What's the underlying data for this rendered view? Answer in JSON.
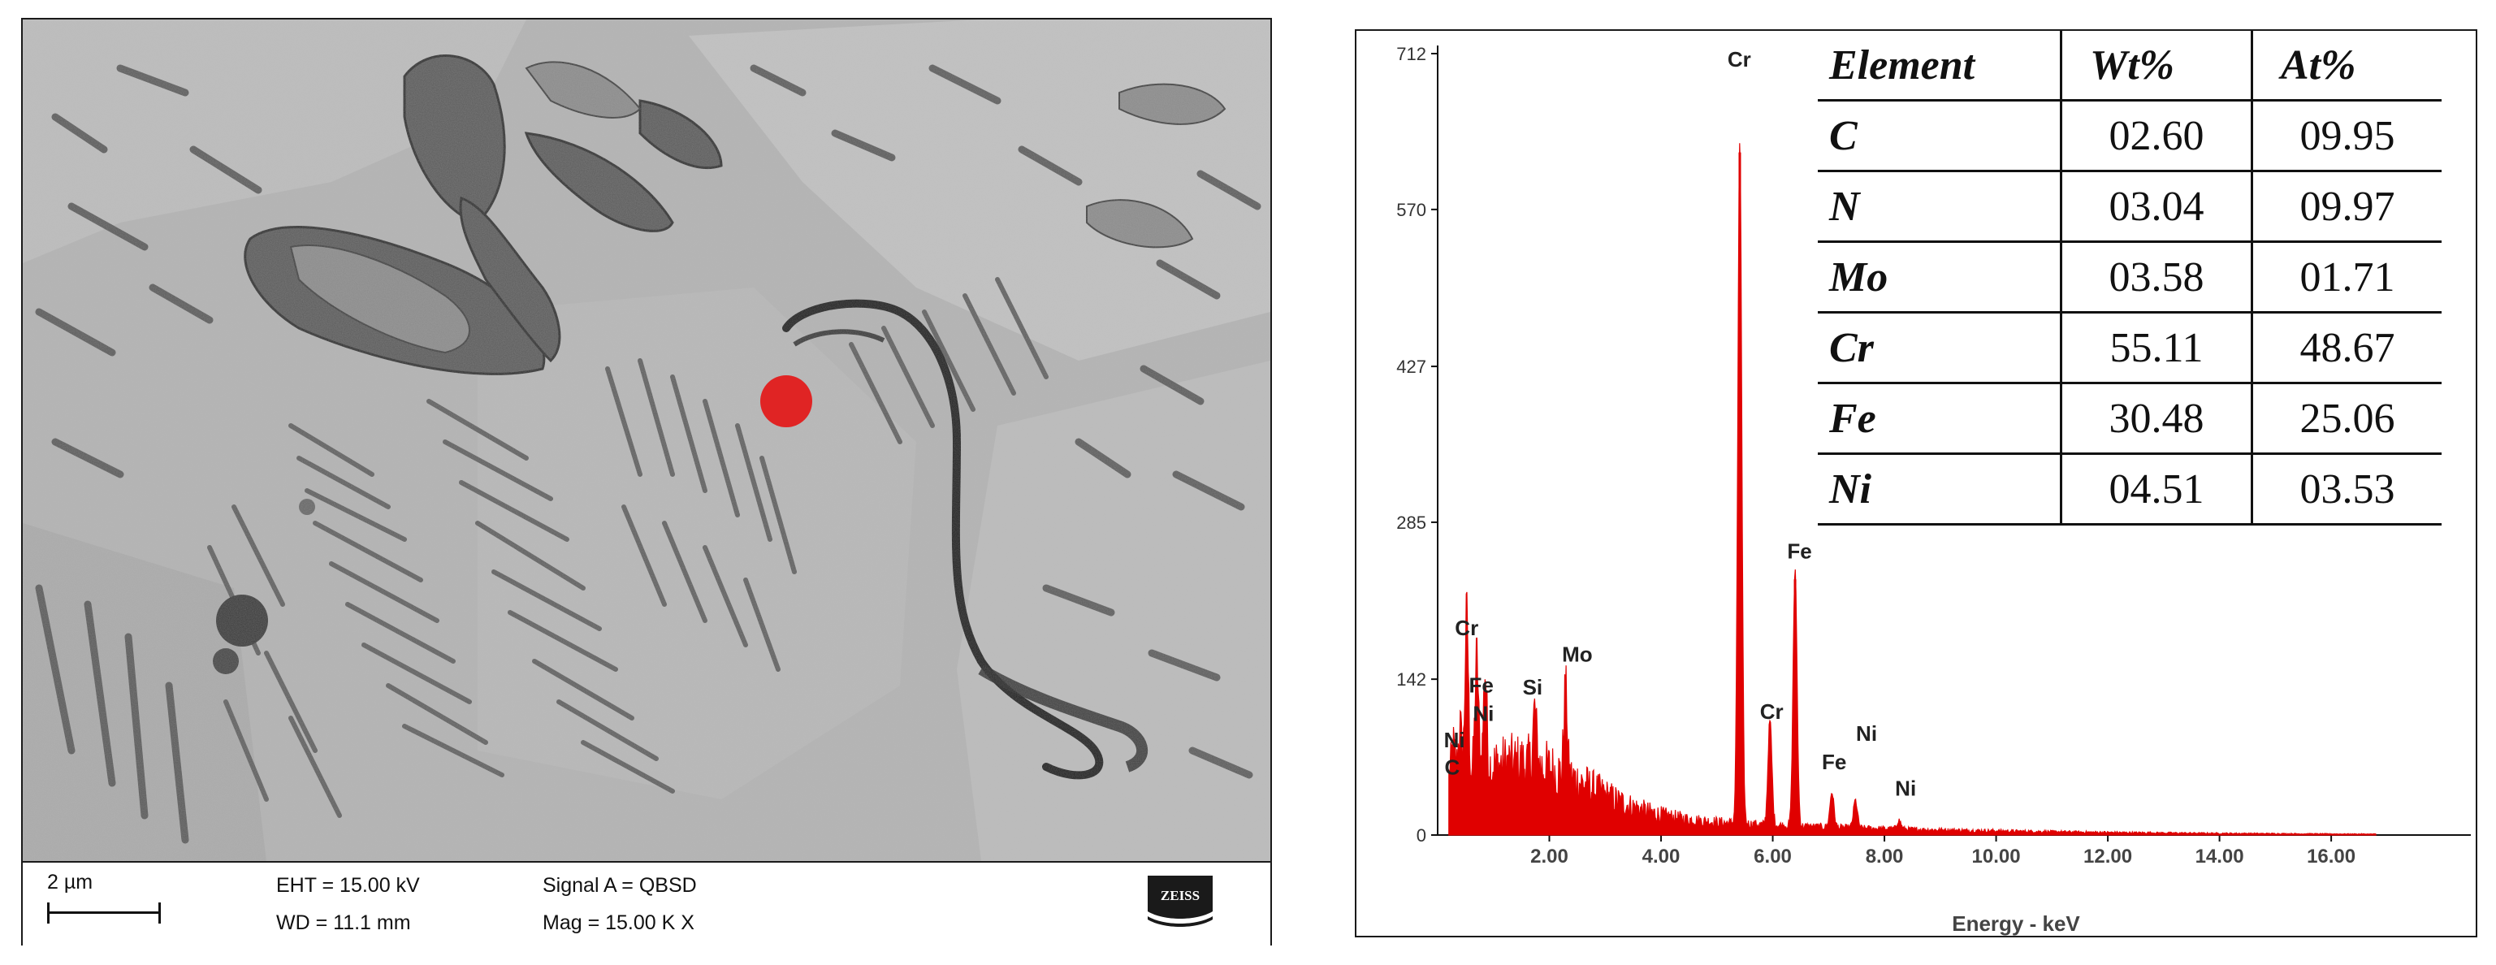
{
  "sem": {
    "scale_label": "2 µm",
    "eht": "EHT = 15.00 kV",
    "wd": "WD = 11.1 mm",
    "signal": "Signal A = QBSD",
    "mag": "Mag =  15.00 K X",
    "logo_text": "ZEISS",
    "marker_color": "#e02424"
  },
  "eds_table": {
    "headers": [
      "Element",
      "Wt%",
      "At%"
    ],
    "rows": [
      {
        "element": "C",
        "wt": "02.60",
        "at": "09.95"
      },
      {
        "element": "N",
        "wt": "03.04",
        "at": "09.97"
      },
      {
        "element": "Mo",
        "wt": "03.58",
        "at": "01.71"
      },
      {
        "element": "Cr",
        "wt": "55.11",
        "at": "48.67"
      },
      {
        "element": "Fe",
        "wt": "30.48",
        "at": "25.06"
      },
      {
        "element": "Ni",
        "wt": "04.51",
        "at": "03.53"
      }
    ]
  },
  "chart_data": {
    "type": "area",
    "title": "",
    "xlabel": "Energy - keV",
    "ylabel": "",
    "xlim": [
      0,
      18.5
    ],
    "ylim": [
      0,
      712
    ],
    "xticks": [
      "2.00",
      "4.00",
      "6.00",
      "8.00",
      "10.00",
      "12.00",
      "14.00",
      "16.00"
    ],
    "yticks": [
      "0",
      "142",
      "285",
      "427",
      "570",
      "712"
    ],
    "color": "#e00000",
    "peaks": [
      {
        "label": "C",
        "x": 0.28,
        "y": 28
      },
      {
        "label": "Ni",
        "x": 0.4,
        "y": 45
      },
      {
        "label": "Cr",
        "x": 0.52,
        "y": 148
      },
      {
        "label": "Fe",
        "x": 0.7,
        "y": 105
      },
      {
        "label": "Ni",
        "x": 0.85,
        "y": 88
      },
      {
        "label": "Si",
        "x": 1.74,
        "y": 52
      },
      {
        "label": "Mo",
        "x": 2.29,
        "y": 82
      },
      {
        "label": "Cr",
        "x": 5.41,
        "y": 622
      },
      {
        "label": "Cr",
        "x": 5.95,
        "y": 95
      },
      {
        "label": "Fe",
        "x": 6.4,
        "y": 233
      },
      {
        "label": "Fe",
        "x": 7.06,
        "y": 32
      },
      {
        "label": "Ni",
        "x": 7.48,
        "y": 25
      },
      {
        "label": "Ni",
        "x": 8.26,
        "y": 8
      }
    ],
    "peak_labels": [
      {
        "text": "Cr",
        "x": 5.4,
        "y": 700
      },
      {
        "text": "Fe",
        "x": 6.48,
        "y": 252
      },
      {
        "text": "Cr",
        "x": 0.52,
        "y": 182
      },
      {
        "text": "Fe",
        "x": 0.78,
        "y": 130
      },
      {
        "text": "Ni",
        "x": 0.82,
        "y": 104
      },
      {
        "text": "Si",
        "x": 1.7,
        "y": 128
      },
      {
        "text": "Mo",
        "x": 2.5,
        "y": 158
      },
      {
        "text": "Ni",
        "x": 0.3,
        "y": 80
      },
      {
        "text": "C",
        "x": 0.26,
        "y": 55
      },
      {
        "text": "Cr",
        "x": 5.98,
        "y": 106
      },
      {
        "text": "Ni",
        "x": 7.68,
        "y": 86
      },
      {
        "text": "Fe",
        "x": 7.1,
        "y": 60
      },
      {
        "text": "Ni",
        "x": 8.38,
        "y": 36
      }
    ]
  }
}
